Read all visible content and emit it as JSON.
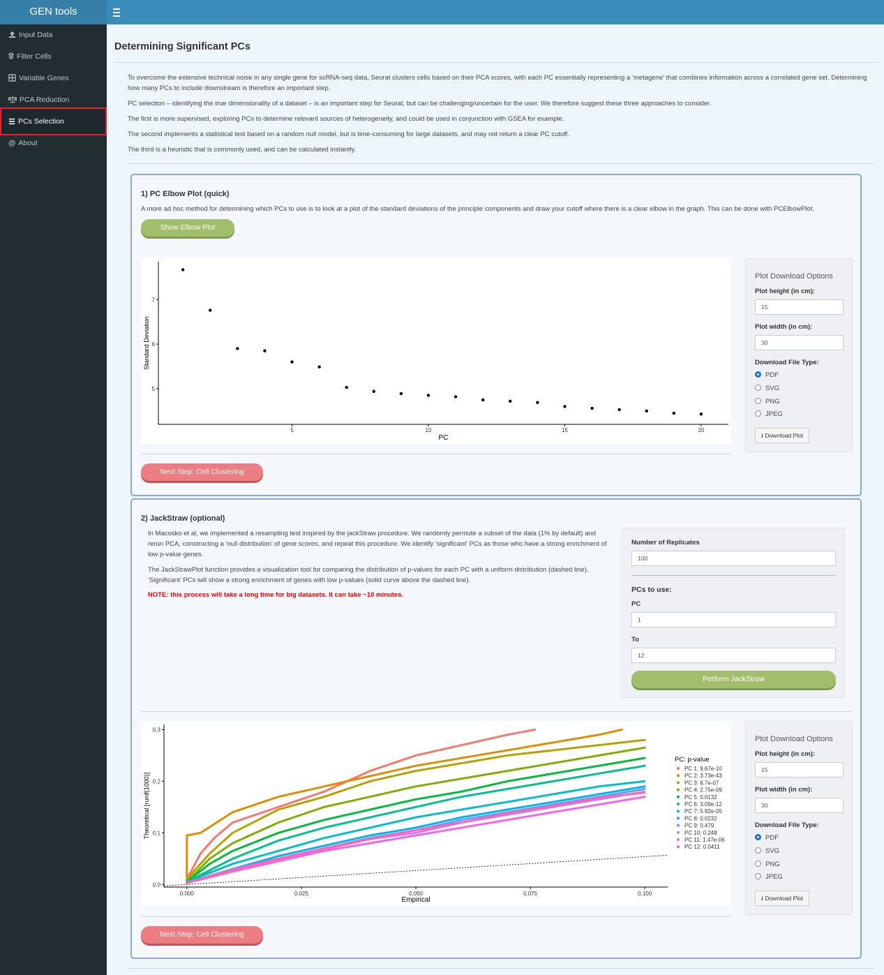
{
  "app": {
    "brand": "GEN tools"
  },
  "sidebar": {
    "items": [
      {
        "label": "Input Data",
        "icon": "upload-icon"
      },
      {
        "label": "Filter Cells",
        "icon": "layers-icon"
      },
      {
        "label": "Variable Genes",
        "icon": "grid-icon"
      },
      {
        "label": "PCA Reduction",
        "icon": "balance-icon"
      },
      {
        "label": "PCs Selection",
        "icon": "list-icon",
        "active": true
      },
      {
        "label": "About",
        "icon": "at-icon"
      }
    ]
  },
  "page": {
    "title": "Determining Significant PCs",
    "intro": [
      "To overcome the extensive technical noise in any single gene for scRNA-seq data, Seurat clusters cells based on their PCA scores, with each PC essentially representing a ‘metagene’ that combines information across a correlated gene set. Determining how many PCs to include downstream is therefore an important step.",
      "PC selection – identifying the true dimensionality of a dataset – is an important step for Seurat, but can be challenging/uncertain for the user. We therefore suggest these three approaches to consider.",
      "The first is more supervised, exploring PCs to determine relevant sources of heterogeneity, and could be used in conjunction with GSEA for example.",
      "The second implements a statistical test based on a random null model, but is time-consuming for large datasets, and may not return a clear PC cutoff.",
      "The third is a heuristic that is commonly used, and can be calculated instantly."
    ]
  },
  "elbow": {
    "title": "1) PC Elbow Plot (quick)",
    "text": "A more ad hoc method for determining which PCs to use is to look at a plot of the standard deviations of the principle components and draw your cutoff where there is a clear elbow in the graph. This can be done with PCElbowPlot.",
    "button": "Show Elbow Plot",
    "next": "Next Step: Cell Clustering"
  },
  "jackstraw": {
    "title": "2) JackStraw (optional)",
    "text1": "In Macosko et al, we implemented a resampling test inspired by the jackStraw procedure. We randomly permute a subset of the data (1% by default) and rerun PCA, constructing a ‘null distribution’ of gene scores, and repeat this procedure. We identify ‘significant’ PCs as those who have a strong enrichment of low p-value genes.",
    "text2": "The JackStrawPlot function provides a visualization tool for comparing the distribution of p-values for each PC with a uniform distribution (dashed line). ‘Significant’ PCs will show a strong enrichment of genes with low p-values (solid curve above the dashed line).",
    "note": "NOTE: this process will take a long time for big datasets. It can take ~10 minutes.",
    "replicates_label": "Number of Replicates",
    "replicates_value": "100",
    "pcs_label": "PCs to use:",
    "pc_label": "PC",
    "pc_value": "1",
    "to_label": "To",
    "to_value": "12",
    "button": "Perform JackStraw",
    "next": "Next Step: Cell Clustering"
  },
  "download": {
    "title": "Plot Download Options",
    "height_label": "Plot height (in cm):",
    "height_value": "15",
    "width_label": "Plot width (in cm):",
    "width_value": "30",
    "type_label": "Download File Type:",
    "types": [
      "PDF",
      "SVG",
      "PNG",
      "JPEG"
    ],
    "selected": "PDF",
    "button": "Download Plot"
  },
  "chart_data": [
    {
      "type": "scatter",
      "xlabel": "PC",
      "ylabel": "Standard Deviation",
      "x": [
        1,
        2,
        3,
        4,
        5,
        6,
        7,
        8,
        9,
        10,
        11,
        12,
        13,
        14,
        15,
        16,
        17,
        18,
        19,
        20
      ],
      "y": [
        7.67,
        6.76,
        5.9,
        5.85,
        5.6,
        5.49,
        5.03,
        4.94,
        4.89,
        4.85,
        4.82,
        4.75,
        4.72,
        4.69,
        4.6,
        4.56,
        4.53,
        4.5,
        4.45,
        4.43
      ],
      "xticks": [
        5,
        10,
        15,
        20
      ],
      "yticks": [
        5,
        6,
        7
      ],
      "xlim": [
        0.1,
        21
      ],
      "ylim": [
        4.2,
        7.85
      ]
    },
    {
      "type": "line",
      "xlabel": "Empirical",
      "ylabel": "Theoretical [runif(1000)]",
      "xticks": [
        "0.000",
        "0.025",
        "0.050",
        "0.075",
        "0.100"
      ],
      "yticks": [
        "0.0",
        "0.1",
        "0.2",
        "0.3"
      ],
      "xlim": [
        -0.005,
        0.105
      ],
      "ylim": [
        -0.005,
        0.31
      ],
      "legend_title": "PC: p-value",
      "series": [
        {
          "name": "PC 1: 9.67e-10",
          "color": "#f8766d",
          "points": [
            [
              0,
              0.01
            ],
            [
              0.003,
              0.06
            ],
            [
              0.006,
              0.09
            ],
            [
              0.01,
              0.12
            ],
            [
              0.02,
              0.15
            ],
            [
              0.03,
              0.18
            ],
            [
              0.035,
              0.2
            ],
            [
              0.04,
              0.22
            ],
            [
              0.05,
              0.25
            ],
            [
              0.06,
              0.27
            ],
            [
              0.07,
              0.29
            ],
            [
              0.076,
              0.3
            ]
          ]
        },
        {
          "name": "PC 2: 3.73e-43",
          "color": "#de8c00",
          "points": [
            [
              0,
              0.0
            ],
            [
              0,
              0.095
            ],
            [
              0.003,
              0.1
            ],
            [
              0.01,
              0.14
            ],
            [
              0.02,
              0.17
            ],
            [
              0.03,
              0.19
            ],
            [
              0.04,
              0.21
            ],
            [
              0.05,
              0.23
            ],
            [
              0.06,
              0.245
            ],
            [
              0.07,
              0.26
            ],
            [
              0.08,
              0.275
            ],
            [
              0.09,
              0.29
            ],
            [
              0.095,
              0.3
            ]
          ]
        },
        {
          "name": "PC 3: 8.7e-07",
          "color": "#b79f00",
          "points": [
            [
              0,
              0.01
            ],
            [
              0.005,
              0.06
            ],
            [
              0.01,
              0.1
            ],
            [
              0.02,
              0.145
            ],
            [
              0.03,
              0.17
            ],
            [
              0.04,
              0.2
            ],
            [
              0.05,
              0.22
            ],
            [
              0.06,
              0.235
            ],
            [
              0.07,
              0.25
            ],
            [
              0.08,
              0.26
            ],
            [
              0.09,
              0.27
            ],
            [
              0.1,
              0.28
            ]
          ]
        },
        {
          "name": "PC 4: 2.75e-09",
          "color": "#7cae00",
          "points": [
            [
              0,
              0.005
            ],
            [
              0.005,
              0.05
            ],
            [
              0.01,
              0.08
            ],
            [
              0.02,
              0.12
            ],
            [
              0.03,
              0.15
            ],
            [
              0.04,
              0.17
            ],
            [
              0.05,
              0.19
            ],
            [
              0.06,
              0.205
            ],
            [
              0.07,
              0.22
            ],
            [
              0.08,
              0.235
            ],
            [
              0.09,
              0.25
            ],
            [
              0.1,
              0.265
            ]
          ]
        },
        {
          "name": "PC 5: 0.0132",
          "color": "#00ba38",
          "points": [
            [
              0,
              0.005
            ],
            [
              0.005,
              0.04
            ],
            [
              0.01,
              0.065
            ],
            [
              0.02,
              0.1
            ],
            [
              0.03,
              0.125
            ],
            [
              0.04,
              0.145
            ],
            [
              0.05,
              0.165
            ],
            [
              0.06,
              0.18
            ],
            [
              0.07,
              0.2
            ],
            [
              0.08,
              0.215
            ],
            [
              0.09,
              0.23
            ],
            [
              0.1,
              0.245
            ]
          ]
        },
        {
          "name": "PC 6: 3.09e-12",
          "color": "#00c08b",
          "points": [
            [
              0,
              0.005
            ],
            [
              0.01,
              0.05
            ],
            [
              0.02,
              0.085
            ],
            [
              0.03,
              0.11
            ],
            [
              0.04,
              0.13
            ],
            [
              0.05,
              0.15
            ],
            [
              0.06,
              0.17
            ],
            [
              0.07,
              0.185
            ],
            [
              0.08,
              0.2
            ],
            [
              0.09,
              0.215
            ],
            [
              0.1,
              0.23
            ]
          ]
        },
        {
          "name": "PC 7: 5.92e-05",
          "color": "#00bfc4",
          "points": [
            [
              0,
              0.005
            ],
            [
              0.01,
              0.04
            ],
            [
              0.02,
              0.065
            ],
            [
              0.03,
              0.09
            ],
            [
              0.04,
              0.11
            ],
            [
              0.05,
              0.13
            ],
            [
              0.06,
              0.145
            ],
            [
              0.07,
              0.16
            ],
            [
              0.08,
              0.175
            ],
            [
              0.09,
              0.19
            ],
            [
              0.1,
              0.2
            ]
          ]
        },
        {
          "name": "PC 8: 0.0232",
          "color": "#00b4f0",
          "points": [
            [
              0,
              0.003
            ],
            [
              0.01,
              0.03
            ],
            [
              0.02,
              0.055
            ],
            [
              0.03,
              0.075
            ],
            [
              0.04,
              0.095
            ],
            [
              0.05,
              0.11
            ],
            [
              0.06,
              0.13
            ],
            [
              0.07,
              0.145
            ],
            [
              0.08,
              0.16
            ],
            [
              0.09,
              0.175
            ],
            [
              0.1,
              0.19
            ]
          ]
        },
        {
          "name": "PC 9: 0.479",
          "color": "#619cff",
          "points": [
            [
              0,
              0.003
            ],
            [
              0.01,
              0.03
            ],
            [
              0.02,
              0.05
            ],
            [
              0.03,
              0.07
            ],
            [
              0.04,
              0.09
            ],
            [
              0.05,
              0.105
            ],
            [
              0.06,
              0.125
            ],
            [
              0.07,
              0.14
            ],
            [
              0.08,
              0.155
            ],
            [
              0.09,
              0.17
            ],
            [
              0.1,
              0.185
            ]
          ]
        },
        {
          "name": "PC 10: 0.248",
          "color": "#c77cff",
          "points": [
            [
              0,
              0.003
            ],
            [
              0.01,
              0.028
            ],
            [
              0.02,
              0.048
            ],
            [
              0.03,
              0.068
            ],
            [
              0.04,
              0.088
            ],
            [
              0.05,
              0.1
            ],
            [
              0.06,
              0.12
            ],
            [
              0.07,
              0.135
            ],
            [
              0.08,
              0.15
            ],
            [
              0.09,
              0.165
            ],
            [
              0.1,
              0.18
            ]
          ]
        },
        {
          "name": "PC 11: 1.47e-06",
          "color": "#f564e3",
          "points": [
            [
              0,
              0.003
            ],
            [
              0.01,
              0.025
            ],
            [
              0.02,
              0.045
            ],
            [
              0.03,
              0.065
            ],
            [
              0.04,
              0.08
            ],
            [
              0.05,
              0.095
            ],
            [
              0.06,
              0.11
            ],
            [
              0.07,
              0.125
            ],
            [
              0.08,
              0.14
            ],
            [
              0.09,
              0.155
            ],
            [
              0.1,
              0.17
            ]
          ]
        },
        {
          "name": "PC 12: 0.0411",
          "color": "#ff64b0",
          "points": [
            [
              0,
              0.003
            ],
            [
              0.01,
              0.028
            ],
            [
              0.02,
              0.05
            ],
            [
              0.03,
              0.07
            ],
            [
              0.04,
              0.088
            ],
            [
              0.05,
              0.105
            ],
            [
              0.06,
              0.12
            ],
            [
              0.07,
              0.138
            ],
            [
              0.08,
              0.152
            ],
            [
              0.09,
              0.168
            ],
            [
              0.1,
              0.178
            ]
          ]
        }
      ],
      "reference_line": {
        "style": "dashed",
        "points": [
          [
            -0.005,
            -0.005
          ],
          [
            0.105,
            0.105
          ]
        ]
      }
    }
  ]
}
